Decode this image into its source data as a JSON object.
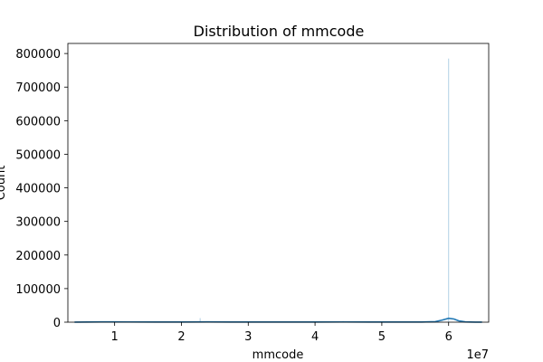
{
  "chart_data": {
    "type": "histogram",
    "title": "Distribution of mmcode",
    "xlabel": "mmcode",
    "ylabel": "Count",
    "x_scale_label": "1e7",
    "xlim": [
      3000000,
      66000000
    ],
    "ylim": [
      0,
      830000
    ],
    "x_ticks": [
      {
        "value": 10000000,
        "label": "1"
      },
      {
        "value": 20000000,
        "label": "2"
      },
      {
        "value": 30000000,
        "label": "3"
      },
      {
        "value": 40000000,
        "label": "4"
      },
      {
        "value": 50000000,
        "label": "5"
      },
      {
        "value": 60000000,
        "label": "6"
      }
    ],
    "y_ticks": [
      {
        "value": 0,
        "label": "0"
      },
      {
        "value": 100000,
        "label": "100000"
      },
      {
        "value": 200000,
        "label": "200000"
      },
      {
        "value": 300000,
        "label": "300000"
      },
      {
        "value": 400000,
        "label": "400000"
      },
      {
        "value": 500000,
        "label": "500000"
      },
      {
        "value": 600000,
        "label": "600000"
      },
      {
        "value": 700000,
        "label": "700000"
      },
      {
        "value": 800000,
        "label": "800000"
      }
    ],
    "bars": [
      {
        "x": 22800000,
        "count": 12000
      },
      {
        "x": 44200000,
        "count": 4000
      },
      {
        "x": 60000000,
        "count": 785000
      }
    ],
    "kde": {
      "x": [
        4000000,
        8000000,
        12000000,
        16000000,
        20000000,
        24000000,
        28000000,
        32000000,
        36000000,
        40000000,
        44000000,
        48000000,
        52000000,
        56000000,
        58000000,
        59000000,
        60000000,
        60800000,
        61500000,
        62500000,
        64000000,
        65000000
      ],
      "y": [
        300,
        900,
        700,
        400,
        500,
        800,
        600,
        400,
        400,
        500,
        700,
        500,
        400,
        500,
        1500,
        6000,
        11500,
        9500,
        4000,
        800,
        200,
        100
      ]
    },
    "series_color": "#1f77b4",
    "grid": false
  }
}
